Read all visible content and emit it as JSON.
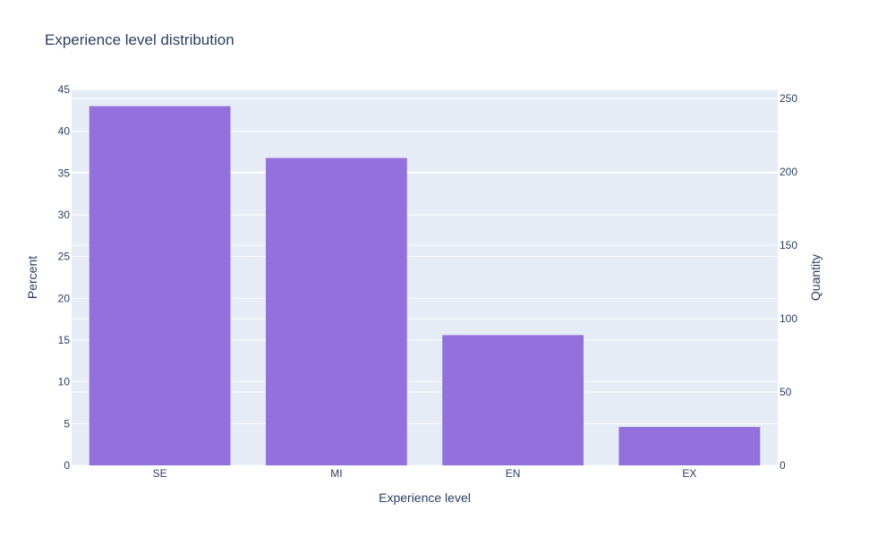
{
  "chart_data": {
    "type": "bar",
    "title": "Experience level distribution",
    "xlabel": "Experience level",
    "ylabel": "Percent",
    "y2label": "Quantity",
    "categories": [
      "SE",
      "MI",
      "EN",
      "EX"
    ],
    "series": [
      {
        "values": [
          43.0,
          36.8,
          15.6,
          4.6
        ]
      }
    ],
    "ylim": [
      0,
      45
    ],
    "y2lim": [
      0,
      250
    ],
    "yticks": [
      0,
      5,
      10,
      15,
      20,
      25,
      30,
      35,
      40,
      45
    ],
    "y2ticks": [
      0,
      50,
      100,
      150,
      200,
      250
    ],
    "grid": true,
    "colors": {
      "bar": "#9370db",
      "plot_bg": "#e5ecf6",
      "grid": "#ffffff",
      "text": "#2a3f5f"
    }
  }
}
